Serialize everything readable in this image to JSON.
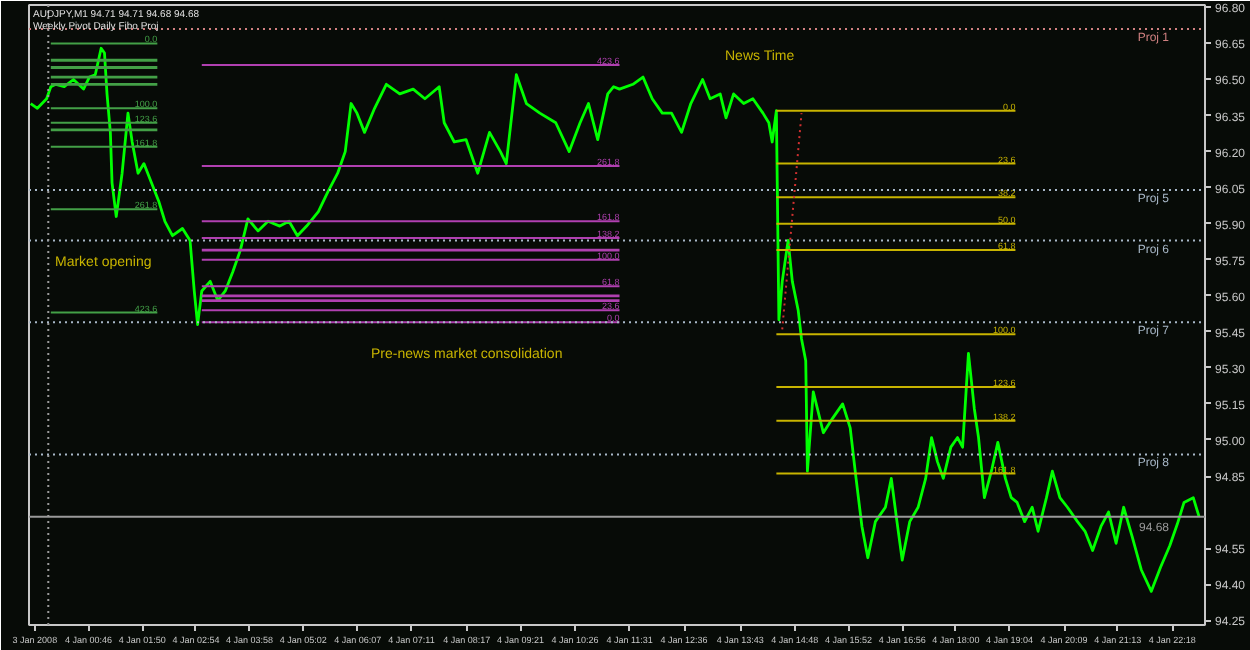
{
  "chart_data": {
    "type": "line",
    "title": "AUDJPY,M1  94.71 94.71 94.68 94.68",
    "subtitle": "Weekly Pivot Daily Fibo Proj",
    "xlim": [
      "2008-01-03T23:35",
      "2008-01-04T22:57"
    ],
    "ylim": [
      94.23,
      96.81
    ],
    "xticks": [
      {
        "value": "2008-01-03T23:42",
        "label": "3 Jan 2008"
      },
      {
        "value": "2008-01-04T00:46",
        "label": "4 Jan 00:46"
      },
      {
        "value": "2008-01-04T01:50",
        "label": "4 Jan 01:50"
      },
      {
        "value": "2008-01-04T02:54",
        "label": "4 Jan 02:54"
      },
      {
        "value": "2008-01-04T03:58",
        "label": "4 Jan 03:58"
      },
      {
        "value": "2008-01-04T05:02",
        "label": "4 Jan 05:02"
      },
      {
        "value": "2008-01-04T06:07",
        "label": "4 Jan 06:07"
      },
      {
        "value": "2008-01-04T07:11",
        "label": "4 Jan 07:11"
      },
      {
        "value": "2008-01-04T08:17",
        "label": "4 Jan 08:17"
      },
      {
        "value": "2008-01-04T09:21",
        "label": "4 Jan 09:21"
      },
      {
        "value": "2008-01-04T10:26",
        "label": "4 Jan 10:26"
      },
      {
        "value": "2008-01-04T11:31",
        "label": "4 Jan 11:31"
      },
      {
        "value": "2008-01-04T12:36",
        "label": "4 Jan 12:36"
      },
      {
        "value": "2008-01-04T13:43",
        "label": "4 Jan 13:43"
      },
      {
        "value": "2008-01-04T14:48",
        "label": "4 Jan 14:48"
      },
      {
        "value": "2008-01-04T15:52",
        "label": "4 Jan 15:52"
      },
      {
        "value": "2008-01-04T16:56",
        "label": "4 Jan 16:56"
      },
      {
        "value": "2008-01-04T18:00",
        "label": "4 Jan 18:00"
      },
      {
        "value": "2008-01-04T19:04",
        "label": "4 Jan 19:04"
      },
      {
        "value": "2008-01-04T20:09",
        "label": "4 Jan 20:09"
      },
      {
        "value": "2008-01-04T21:13",
        "label": "4 Jan 21:13"
      },
      {
        "value": "2008-01-04T22:18",
        "label": "4 Jan 22:18"
      }
    ],
    "yticks": [
      {
        "value": 96.8,
        "label": "96.80"
      },
      {
        "value": 96.65,
        "label": "96.65"
      },
      {
        "value": 96.5,
        "label": "96.50"
      },
      {
        "value": 96.35,
        "label": "96.35"
      },
      {
        "value": 96.2,
        "label": "96.20"
      },
      {
        "value": 96.05,
        "label": "96.05"
      },
      {
        "value": 95.9,
        "label": "95.90"
      },
      {
        "value": 95.75,
        "label": "95.75"
      },
      {
        "value": 95.6,
        "label": "95.60"
      },
      {
        "value": 95.45,
        "label": "95.45"
      },
      {
        "value": 95.3,
        "label": "95.30"
      },
      {
        "value": 95.15,
        "label": "95.15"
      },
      {
        "value": 95.0,
        "label": "95.00"
      },
      {
        "value": 94.85,
        "label": "94.85"
      },
      {
        "value": 94.55,
        "label": "94.55"
      },
      {
        "value": 94.4,
        "label": "94.40"
      },
      {
        "value": 94.25,
        "label": "94.25"
      }
    ],
    "series": [
      {
        "color": "#00ff00",
        "x": [
          "2008-01-03T23:37",
          "2008-01-03T23:45",
          "2008-01-03T23:56",
          "2008-01-04T00:01",
          "2008-01-04T00:07",
          "2008-01-04T00:17",
          "2008-01-04T00:28",
          "2008-01-04T00:40",
          "2008-01-04T00:47",
          "2008-01-04T00:54",
          "2008-01-04T01:01",
          "2008-01-04T01:05",
          "2008-01-04T01:08",
          "2008-01-04T01:12",
          "2008-01-04T01:14",
          "2008-01-04T01:19",
          "2008-01-04T01:26",
          "2008-01-04T01:33",
          "2008-01-04T01:38",
          "2008-01-04T01:45",
          "2008-01-04T01:52",
          "2008-01-04T02:01",
          "2008-01-04T02:10",
          "2008-01-04T02:17",
          "2008-01-04T02:26",
          "2008-01-04T02:38",
          "2008-01-04T02:47",
          "2008-01-04T02:52",
          "2008-01-04T02:56",
          "2008-01-04T03:01",
          "2008-01-04T03:11",
          "2008-01-04T03:20",
          "2008-01-04T03:29",
          "2008-01-04T03:38",
          "2008-01-04T03:47",
          "2008-01-04T03:56",
          "2008-01-04T04:08",
          "2008-01-04T04:20",
          "2008-01-04T04:34",
          "2008-01-04T04:45",
          "2008-01-04T04:55",
          "2008-01-04T05:06",
          "2008-01-04T05:20",
          "2008-01-04T05:31",
          "2008-01-04T05:43",
          "2008-01-04T05:52",
          "2008-01-04T05:59",
          "2008-01-04T06:06",
          "2008-01-04T06:15",
          "2008-01-04T06:27",
          "2008-01-04T06:41",
          "2008-01-04T06:57",
          "2008-01-04T07:13",
          "2008-01-04T07:27",
          "2008-01-04T07:44",
          "2008-01-04T07:50",
          "2008-01-04T08:02",
          "2008-01-04T08:16",
          "2008-01-04T08:30",
          "2008-01-04T08:44",
          "2008-01-04T08:57",
          "2008-01-04T09:04",
          "2008-01-04T09:16",
          "2008-01-04T09:28",
          "2008-01-04T09:44",
          "2008-01-04T10:03",
          "2008-01-04T10:19",
          "2008-01-04T10:32",
          "2008-01-04T10:42",
          "2008-01-04T10:53",
          "2008-01-04T11:05",
          "2008-01-04T11:12",
          "2008-01-04T11:19",
          "2008-01-04T11:35",
          "2008-01-04T11:47",
          "2008-01-04T11:58",
          "2008-01-04T12:10",
          "2008-01-04T12:21",
          "2008-01-04T12:33",
          "2008-01-04T12:44",
          "2008-01-04T12:58",
          "2008-01-04T13:07",
          "2008-01-04T13:19",
          "2008-01-04T13:26",
          "2008-01-04T13:35",
          "2008-01-04T13:47",
          "2008-01-04T13:58",
          "2008-01-04T14:10",
          "2008-01-04T14:17",
          "2008-01-04T14:21",
          "2008-01-04T14:26",
          "2008-01-04T14:29",
          "2008-01-04T14:33",
          "2008-01-04T14:40",
          "2008-01-04T14:45",
          "2008-01-04T14:52",
          "2008-01-04T14:56",
          "2008-01-04T15:01",
          "2008-01-04T15:03",
          "2008-01-04T15:10",
          "2008-01-04T15:22",
          "2008-01-04T15:33",
          "2008-01-04T15:45",
          "2008-01-04T15:54",
          "2008-01-04T16:01",
          "2008-01-04T16:08",
          "2008-01-04T16:15",
          "2008-01-04T16:24",
          "2008-01-04T16:36",
          "2008-01-04T16:43",
          "2008-01-04T16:49",
          "2008-01-04T16:56",
          "2008-01-04T17:05",
          "2008-01-04T17:15",
          "2008-01-04T17:24",
          "2008-01-04T17:31",
          "2008-01-04T17:38",
          "2008-01-04T17:45",
          "2008-01-04T17:54",
          "2008-01-04T18:02",
          "2008-01-04T18:08",
          "2008-01-04T18:15",
          "2008-01-04T18:22",
          "2008-01-04T18:27",
          "2008-01-04T18:34",
          "2008-01-04T18:43",
          "2008-01-04T18:50",
          "2008-01-04T18:59",
          "2008-01-04T19:06",
          "2008-01-04T19:13",
          "2008-01-04T19:22",
          "2008-01-04T19:31",
          "2008-01-04T19:38",
          "2008-01-04T19:48",
          "2008-01-04T19:55",
          "2008-01-04T20:04",
          "2008-01-04T20:13",
          "2008-01-04T20:25",
          "2008-01-04T20:34",
          "2008-01-04T20:43",
          "2008-01-04T20:53",
          "2008-01-04T21:02",
          "2008-01-04T21:11",
          "2008-01-04T21:20",
          "2008-01-04T21:30",
          "2008-01-04T21:41",
          "2008-01-04T21:53",
          "2008-01-04T22:04",
          "2008-01-04T22:15",
          "2008-01-04T22:24",
          "2008-01-04T22:32",
          "2008-01-04T22:43",
          "2008-01-04T22:50"
        ],
        "values": [
          96.4,
          96.38,
          96.42,
          96.47,
          96.48,
          96.47,
          96.5,
          96.46,
          96.51,
          96.52,
          96.63,
          96.61,
          96.44,
          96.28,
          96.07,
          95.93,
          96.11,
          96.36,
          96.24,
          96.11,
          96.15,
          96.07,
          95.99,
          95.91,
          95.85,
          95.88,
          95.83,
          95.62,
          95.48,
          95.62,
          95.66,
          95.58,
          95.62,
          95.7,
          95.79,
          95.92,
          95.87,
          95.91,
          95.89,
          95.91,
          95.85,
          95.89,
          95.95,
          96.03,
          96.11,
          96.2,
          96.4,
          96.36,
          96.28,
          96.38,
          96.48,
          96.44,
          96.46,
          96.42,
          96.47,
          96.32,
          96.24,
          96.25,
          96.11,
          96.28,
          96.2,
          96.15,
          96.52,
          96.4,
          96.36,
          96.32,
          96.2,
          96.32,
          96.4,
          96.25,
          96.44,
          96.47,
          96.46,
          96.48,
          96.51,
          96.42,
          96.36,
          96.36,
          96.28,
          96.4,
          96.5,
          96.42,
          96.44,
          96.34,
          96.44,
          96.4,
          96.42,
          96.36,
          96.32,
          96.24,
          96.37,
          95.5,
          95.66,
          95.83,
          95.66,
          95.54,
          95.42,
          95.33,
          94.87,
          95.2,
          95.03,
          95.09,
          95.15,
          95.05,
          94.84,
          94.64,
          94.51,
          94.66,
          94.72,
          94.84,
          94.68,
          94.5,
          94.66,
          94.72,
          94.84,
          95.01,
          94.91,
          94.84,
          94.97,
          95.01,
          94.97,
          95.36,
          95.13,
          95.01,
          94.76,
          94.88,
          94.99,
          94.84,
          94.76,
          94.74,
          94.66,
          94.72,
          94.62,
          94.76,
          94.87,
          94.76,
          94.72,
          94.66,
          94.62,
          94.54,
          94.64,
          94.7,
          94.57,
          94.72,
          94.6,
          94.46,
          94.37,
          94.47,
          94.56,
          94.65,
          94.74,
          94.76,
          94.68
        ]
      },
      {
        "name": "0.0",
        "color": "#43a047",
        "x": [
          "2008-01-04T00:01",
          "2008-01-04T02:08"
        ],
        "values": [
          96.65,
          96.65
        ]
      },
      {
        "color": "#43a047",
        "x": [
          "2008-01-04T00:01",
          "2008-01-04T02:08"
        ],
        "values": [
          96.58,
          96.58
        ]
      },
      {
        "color": "#43a047",
        "x": [
          "2008-01-04T00:01",
          "2008-01-04T02:08"
        ],
        "values": [
          96.55,
          96.55
        ]
      },
      {
        "color": "#43a047",
        "x": [
          "2008-01-04T00:01",
          "2008-01-04T02:08"
        ],
        "values": [
          96.51,
          96.51
        ]
      },
      {
        "color": "#43a047",
        "x": [
          "2008-01-04T00:01",
          "2008-01-04T02:08"
        ],
        "values": [
          96.48,
          96.48
        ]
      },
      {
        "name": "100.0",
        "color": "#43a047",
        "x": [
          "2008-01-04T00:01",
          "2008-01-04T02:08"
        ],
        "values": [
          96.38,
          96.38
        ]
      },
      {
        "name": "123.6",
        "color": "#43a047",
        "x": [
          "2008-01-04T00:01",
          "2008-01-04T02:08"
        ],
        "values": [
          96.32,
          96.32
        ]
      },
      {
        "color": "#43a047",
        "x": [
          "2008-01-04T00:01",
          "2008-01-04T02:08"
        ],
        "values": [
          96.29,
          96.29
        ]
      },
      {
        "name": "161.8",
        "color": "#43a047",
        "x": [
          "2008-01-04T00:01",
          "2008-01-04T02:08"
        ],
        "values": [
          96.22,
          96.22
        ]
      },
      {
        "name": "261.8",
        "color": "#43a047",
        "x": [
          "2008-01-04T00:01",
          "2008-01-04T02:08"
        ],
        "values": [
          95.96,
          95.96
        ]
      },
      {
        "name": "423.6",
        "color": "#43a047",
        "x": [
          "2008-01-04T00:01",
          "2008-01-04T02:08"
        ],
        "values": [
          95.53,
          95.53
        ]
      },
      {
        "name": "0.0",
        "color": "#b040b0",
        "x": [
          "2008-01-04T03:01",
          "2008-01-04T11:19"
        ],
        "values": [
          95.49,
          95.49
        ]
      },
      {
        "name": "23.6",
        "color": "#b040b0",
        "x": [
          "2008-01-04T03:01",
          "2008-01-04T11:19"
        ],
        "values": [
          95.54,
          95.54
        ]
      },
      {
        "color": "#b040b0",
        "x": [
          "2008-01-04T03:01",
          "2008-01-04T11:19"
        ],
        "values": [
          95.58,
          95.58
        ]
      },
      {
        "color": "#b040b0",
        "x": [
          "2008-01-04T03:01",
          "2008-01-04T11:19"
        ],
        "values": [
          95.6,
          95.6
        ]
      },
      {
        "name": "61.8",
        "color": "#b040b0",
        "x": [
          "2008-01-04T03:01",
          "2008-01-04T11:19"
        ],
        "values": [
          95.64,
          95.64
        ]
      },
      {
        "name": "100.0",
        "color": "#b040b0",
        "x": [
          "2008-01-04T03:01",
          "2008-01-04T11:19"
        ],
        "values": [
          95.75,
          95.75
        ]
      },
      {
        "color": "#b040b0",
        "x": [
          "2008-01-04T03:01",
          "2008-01-04T11:19"
        ],
        "values": [
          95.79,
          95.79
        ]
      },
      {
        "name": "138.2",
        "color": "#b040b0",
        "x": [
          "2008-01-04T03:01",
          "2008-01-04T11:19"
        ],
        "values": [
          95.84,
          95.84
        ]
      },
      {
        "name": "161.8",
        "color": "#b040b0",
        "x": [
          "2008-01-04T03:01",
          "2008-01-04T11:19"
        ],
        "values": [
          95.91,
          95.91
        ]
      },
      {
        "name": "261.8",
        "color": "#b040b0",
        "x": [
          "2008-01-04T03:01",
          "2008-01-04T11:19"
        ],
        "values": [
          96.14,
          96.14
        ]
      },
      {
        "name": "423.6",
        "color": "#b040b0",
        "x": [
          "2008-01-04T03:01",
          "2008-01-04T11:19"
        ],
        "values": [
          96.56,
          96.56
        ]
      },
      {
        "name": "0.0",
        "color": "#c8b400",
        "x": [
          "2008-01-04T14:26",
          "2008-01-04T19:11"
        ],
        "values": [
          96.37,
          96.37
        ]
      },
      {
        "name": "23.6",
        "color": "#c8b400",
        "x": [
          "2008-01-04T14:26",
          "2008-01-04T19:11"
        ],
        "values": [
          96.15,
          96.15
        ]
      },
      {
        "name": "38.2",
        "color": "#c8b400",
        "x": [
          "2008-01-04T14:26",
          "2008-01-04T19:11"
        ],
        "values": [
          96.01,
          96.01
        ]
      },
      {
        "name": "50.0",
        "color": "#c8b400",
        "x": [
          "2008-01-04T14:26",
          "2008-01-04T19:11"
        ],
        "values": [
          95.9,
          95.9
        ]
      },
      {
        "name": "61.8",
        "color": "#c8b400",
        "x": [
          "2008-01-04T14:26",
          "2008-01-04T19:11"
        ],
        "values": [
          95.79,
          95.79
        ]
      },
      {
        "name": "100.0",
        "color": "#c8b400",
        "x": [
          "2008-01-04T14:26",
          "2008-01-04T19:11"
        ],
        "values": [
          95.44,
          95.44
        ]
      },
      {
        "name": "123.6",
        "color": "#c8b400",
        "x": [
          "2008-01-04T14:26",
          "2008-01-04T19:11"
        ],
        "values": [
          95.22,
          95.22
        ]
      },
      {
        "name": "138.2",
        "color": "#c8b400",
        "x": [
          "2008-01-04T14:26",
          "2008-01-04T19:11"
        ],
        "values": [
          95.08,
          95.08
        ]
      },
      {
        "name": "161.8",
        "color": "#c8b400",
        "x": [
          "2008-01-04T14:26",
          "2008-01-04T19:11"
        ],
        "values": [
          94.86,
          94.86
        ]
      },
      {
        "color": "#d03030",
        "line_style": "dotted",
        "x": [
          "2008-01-04T14:33",
          "2008-01-04T14:56"
        ],
        "values": [
          95.46,
          96.36
        ]
      }
    ],
    "ref_lines": [
      {
        "axis": "y",
        "value": 96.71,
        "label": "Proj 1",
        "color": "#d08080",
        "line_style": "dotted"
      },
      {
        "axis": "y",
        "value": 96.04,
        "label": "Proj 5",
        "color": "#a8b8c8",
        "line_style": "dotted"
      },
      {
        "axis": "y",
        "value": 95.83,
        "label": "Proj 6",
        "color": "#a8b8c8",
        "line_style": "dotted"
      },
      {
        "axis": "y",
        "value": 95.49,
        "label": "Proj 7",
        "color": "#a8b8c8",
        "line_style": "dotted"
      },
      {
        "axis": "y",
        "value": 94.94,
        "label": "Proj 8",
        "color": "#a8b8c8",
        "line_style": "dotted"
      },
      {
        "axis": "y",
        "value": 94.68,
        "label": "94.68",
        "color": "#9a9a9a",
        "line_style": "solid"
      },
      {
        "axis": "x",
        "value": "2008-01-03T23:58",
        "color": "#9a9a9a",
        "line_style": "dotted"
      }
    ],
    "annotations": [
      "Market opening",
      "News Time",
      "Pre-news market consolidation"
    ]
  }
}
